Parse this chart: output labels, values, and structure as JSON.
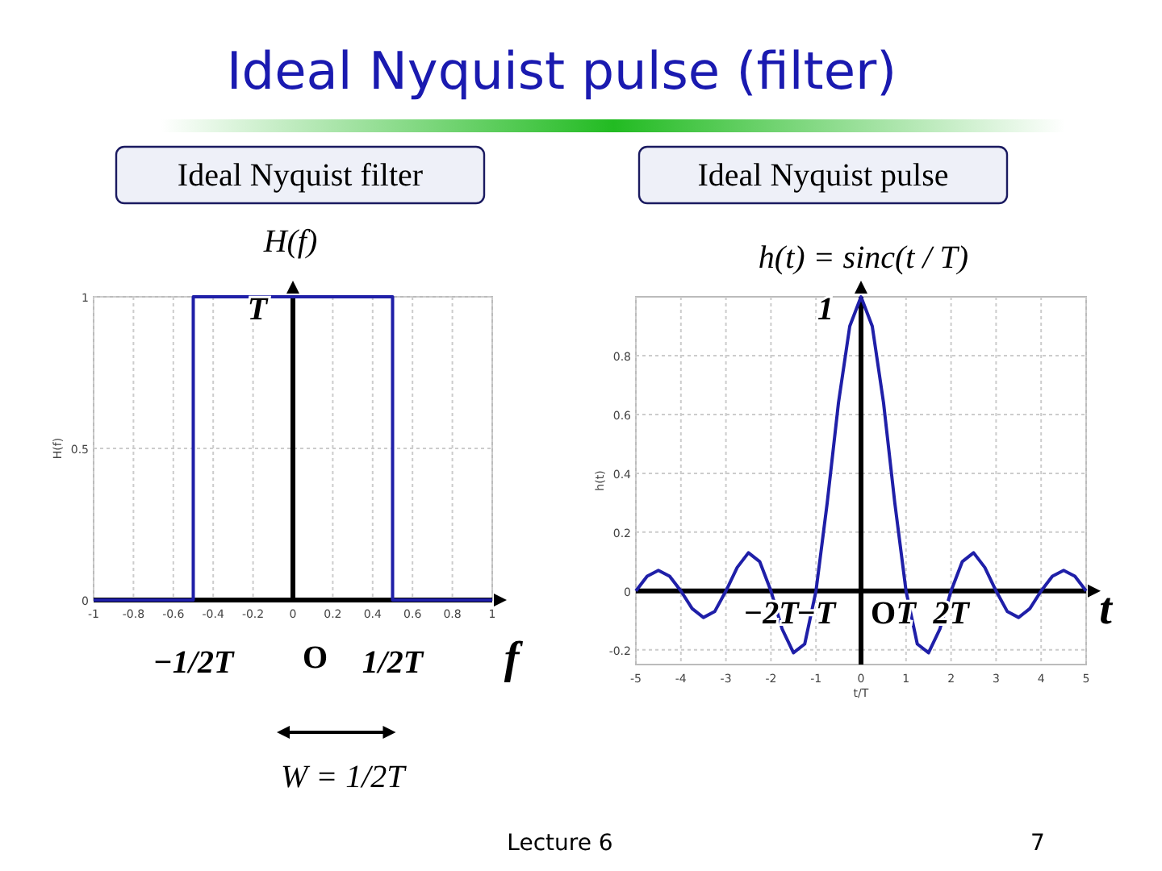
{
  "chart_data": [
    {
      "type": "other",
      "title": "Ideal Nyquist pulse (filter)",
      "annotations": [
        "Lecture 6",
        "7"
      ]
    },
    {
      "type": "line",
      "title": "Ideal Nyquist filter",
      "ylabel": "H(f)",
      "color": "#1f1fa8",
      "x": [
        -1,
        -0.5,
        -0.5,
        0.5,
        0.5,
        1
      ],
      "values": [
        0,
        0,
        1,
        1,
        0,
        0
      ],
      "xlim": [
        -1,
        1
      ],
      "ylim": [
        0,
        1
      ],
      "xticks": [
        -1,
        -0.8,
        -0.6,
        -0.4,
        -0.2,
        0,
        0.2,
        0.4,
        0.6,
        0.8,
        1
      ],
      "yticks": [
        0,
        0.5,
        1
      ],
      "grid": true,
      "marker": "none",
      "line_style": "solid",
      "annotations": [
        "H(f)",
        "W = 1/2T",
        "O",
        {
          "text": "T",
          "x": 0,
          "y": 1
        },
        {
          "text": "−1/2T",
          "x": -0.5,
          "y": 0
        },
        {
          "text": "1/2T",
          "x": 0.5,
          "y": 0
        },
        {
          "text": "f",
          "x": 1,
          "y": 0
        }
      ]
    },
    {
      "type": "line",
      "title": "Ideal Nyquist pulse",
      "ylabel": "h(t)",
      "xlabel": "t/T",
      "color": "#1f1fa8",
      "x": [
        -5,
        -4.75,
        -4.5,
        -4.25,
        -4,
        -3.75,
        -3.5,
        -3.25,
        -3,
        -2.75,
        -2.5,
        -2.25,
        -2,
        -1.75,
        -1.5,
        -1.25,
        -1,
        -0.75,
        -0.5,
        -0.25,
        0,
        0.25,
        0.5,
        0.75,
        1,
        1.25,
        1.5,
        1.75,
        2,
        2.25,
        2.5,
        2.75,
        3,
        3.25,
        3.5,
        3.75,
        4,
        4.25,
        4.5,
        4.75,
        5
      ],
      "values": [
        0,
        0.05,
        0.07,
        0.05,
        0,
        -0.06,
        -0.09,
        -0.07,
        0,
        0.08,
        0.13,
        0.1,
        0,
        -0.13,
        -0.21,
        -0.18,
        0,
        0.3,
        0.64,
        0.9,
        1,
        0.9,
        0.64,
        0.3,
        0,
        -0.18,
        -0.21,
        -0.13,
        0,
        0.1,
        0.13,
        0.08,
        0,
        -0.07,
        -0.09,
        -0.06,
        0,
        0.05,
        0.07,
        0.05,
        0
      ],
      "xlim": [
        -5,
        5
      ],
      "ylim": [
        -0.25,
        1
      ],
      "xticks": [
        -5,
        -4,
        -3,
        -2,
        -1,
        0,
        1,
        2,
        3,
        4,
        5
      ],
      "yticks": [
        -0.2,
        0,
        0.2,
        0.4,
        0.6,
        0.8
      ],
      "grid": true,
      "marker": "none",
      "line_style": "solid",
      "annotations": [
        "h(t) = sinc(t / T)",
        "O",
        {
          "text": "1",
          "x": 0,
          "y": 1
        },
        {
          "text": "−2T",
          "x": -2,
          "y": 0
        },
        {
          "text": "−T",
          "x": -1,
          "y": 0
        },
        {
          "text": "T",
          "x": 1,
          "y": 0
        },
        {
          "text": "2T",
          "x": 2,
          "y": 0
        },
        {
          "text": "t",
          "x": 5,
          "y": 0
        }
      ]
    }
  ]
}
